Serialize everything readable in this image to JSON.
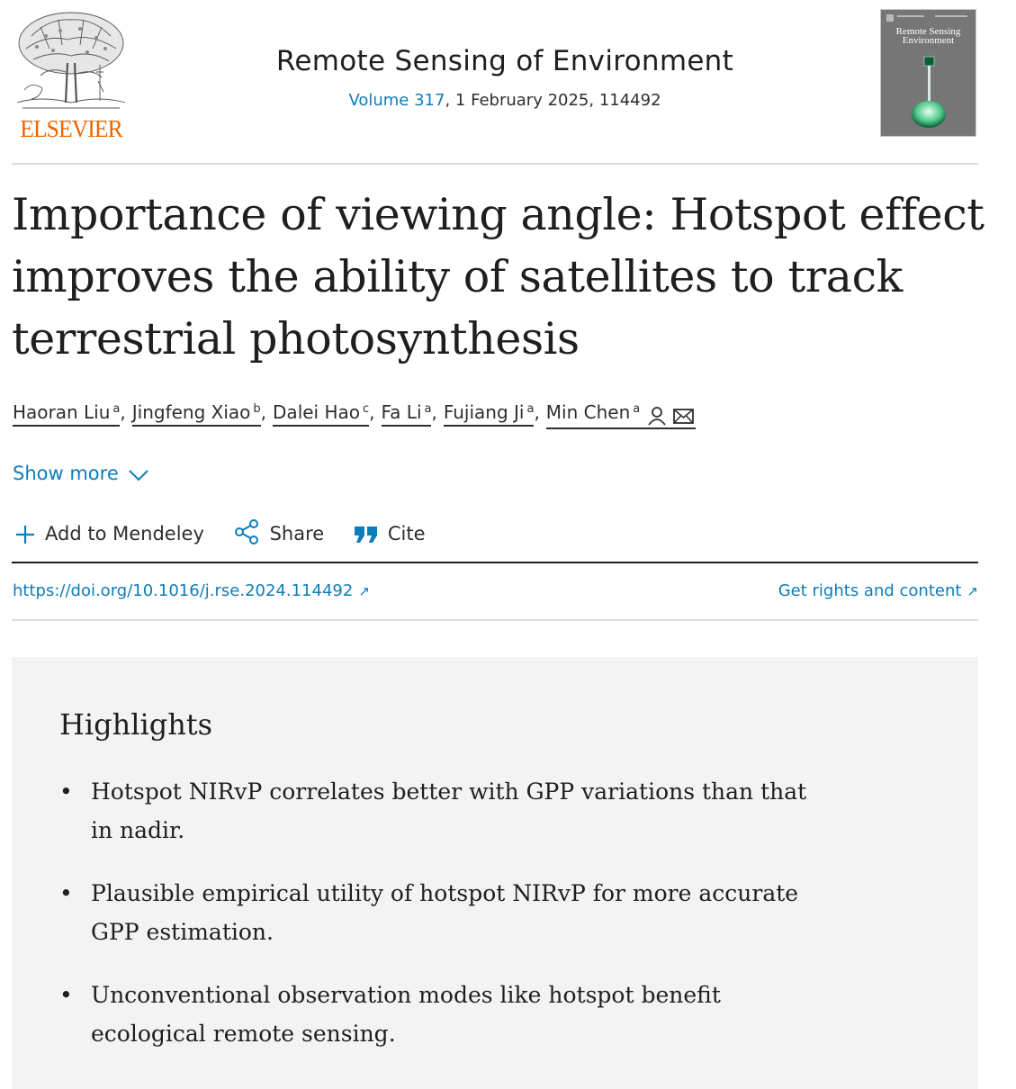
{
  "publisher": {
    "name": "ELSEVIER",
    "brand_color": "#eb6500"
  },
  "journal": {
    "title": "Remote Sensing of Environment",
    "volume_link": "Volume 317",
    "issue_info": ", 1 February 2025, 114492",
    "cover_title": "Remote Sensing Environment"
  },
  "article": {
    "title": "Importance of viewing angle: Hotspot effect improves the ability of satellites to track terrestrial photosynthesis"
  },
  "authors": [
    {
      "name": "Haoran Liu",
      "affiliation": "a"
    },
    {
      "name": "Jingfeng Xiao",
      "affiliation": "b"
    },
    {
      "name": "Dalei Hao",
      "affiliation": "c"
    },
    {
      "name": "Fa Li",
      "affiliation": "a"
    },
    {
      "name": "Fujiang Ji",
      "affiliation": "a"
    },
    {
      "name": "Min Chen",
      "affiliation": "a"
    }
  ],
  "separator": ",",
  "show_more": "Show more",
  "actions": {
    "add_to_mendeley": "Add to Mendeley",
    "share": "Share",
    "cite": "Cite"
  },
  "links": {
    "doi": "https://doi.org/10.1016/j.rse.2024.114492",
    "rights": "Get rights and content",
    "external_arrow": "↗"
  },
  "highlights": {
    "title": "Highlights",
    "bullet": "•",
    "items": [
      "Hotspot NIRvP correlates better with GPP variations than that in nadir.",
      "Plausible empirical utility of hotspot NIRvP for more accurate GPP estimation.",
      "Unconventional observation modes like hotspot benefit ecological remote sensing."
    ]
  },
  "colors": {
    "link": "#0c7dbb",
    "text": "#1f1f1f",
    "highlights_bg": "#f3f3f3"
  },
  "icons": [
    "elsevier-tree-logo",
    "person-icon",
    "mail-icon",
    "chevron-down-icon",
    "plus-icon",
    "share-icon",
    "quote-icon",
    "external-link-icon"
  ]
}
